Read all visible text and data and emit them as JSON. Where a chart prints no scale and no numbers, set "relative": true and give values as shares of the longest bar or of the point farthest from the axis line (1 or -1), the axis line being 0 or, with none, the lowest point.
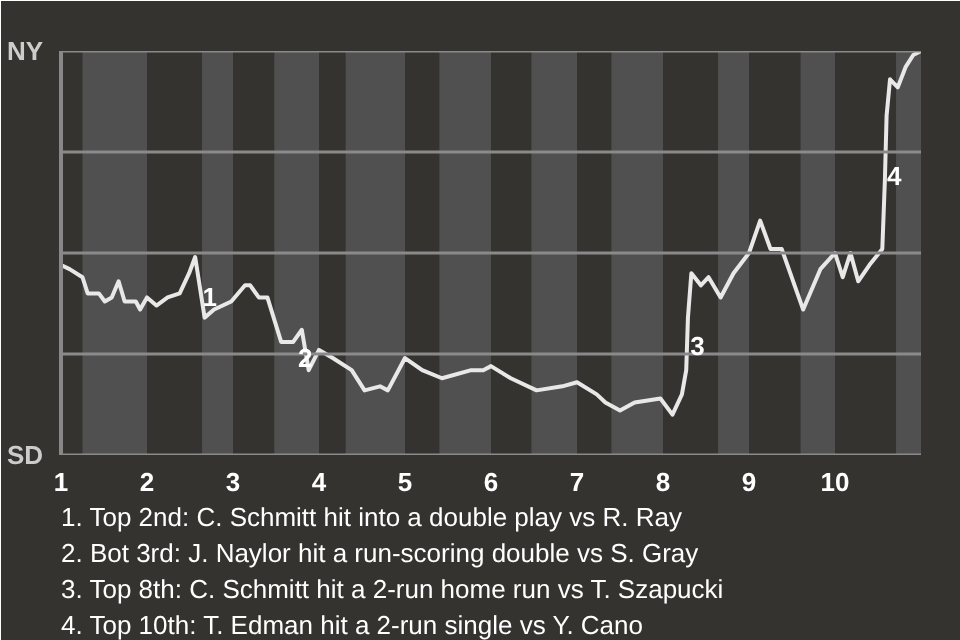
{
  "chart_data": {
    "type": "line",
    "relative": true,
    "x": [
      1.0,
      1.1,
      1.25,
      1.31,
      1.44,
      1.51,
      1.59,
      1.67,
      1.74,
      1.87,
      1.92,
      2.0,
      2.11,
      2.24,
      2.38,
      2.49,
      2.56,
      2.67,
      2.78,
      2.98,
      3.14,
      3.2,
      3.3,
      3.4,
      3.56,
      3.7,
      3.8,
      3.88,
      4.0,
      4.16,
      4.38,
      4.53,
      4.71,
      4.8,
      5.0,
      5.2,
      5.43,
      5.77,
      5.91,
      6.0,
      6.23,
      6.53,
      6.83,
      7.0,
      7.23,
      7.33,
      7.5,
      7.67,
      7.97,
      8.11,
      8.22,
      8.27,
      8.29,
      8.33,
      8.44,
      8.53,
      8.67,
      8.82,
      9.0,
      9.13,
      9.25,
      9.38,
      9.63,
      9.83,
      10.0,
      10.09,
      10.18,
      10.27,
      10.4,
      10.55,
      10.58,
      10.6,
      10.64,
      10.73,
      10.82,
      10.91,
      11.0
    ],
    "series": [
      {
        "color": "#e8e8e8",
        "values": [
          0.47,
          0.46,
          0.44,
          0.4,
          0.4,
          0.38,
          0.39,
          0.43,
          0.38,
          0.38,
          0.36,
          0.39,
          0.37,
          0.39,
          0.4,
          0.45,
          0.49,
          0.34,
          0.36,
          0.38,
          0.42,
          0.42,
          0.39,
          0.39,
          0.28,
          0.28,
          0.31,
          0.21,
          0.26,
          0.24,
          0.21,
          0.16,
          0.17,
          0.16,
          0.24,
          0.21,
          0.19,
          0.21,
          0.21,
          0.22,
          0.19,
          0.16,
          0.17,
          0.18,
          0.15,
          0.13,
          0.11,
          0.13,
          0.14,
          0.1,
          0.15,
          0.21,
          0.34,
          0.45,
          0.42,
          0.44,
          0.39,
          0.45,
          0.5,
          0.58,
          0.51,
          0.51,
          0.36,
          0.46,
          0.5,
          0.44,
          0.5,
          0.43,
          0.47,
          0.51,
          0.68,
          0.84,
          0.93,
          0.91,
          0.96,
          0.99,
          1.0
        ]
      }
    ],
    "xlim": [
      1,
      11
    ],
    "xticks": [
      1,
      2,
      3,
      4,
      5,
      6,
      7,
      8,
      9,
      10
    ],
    "bands": [
      {
        "axis": "x",
        "from": 1.25,
        "to": 2,
        "color": "#505050"
      },
      {
        "axis": "x",
        "from": 2.64,
        "to": 3,
        "color": "#505050"
      },
      {
        "axis": "x",
        "from": 3.48,
        "to": 4,
        "color": "#505050"
      },
      {
        "axis": "x",
        "from": 4.31,
        "to": 5,
        "color": "#505050"
      },
      {
        "axis": "x",
        "from": 5.4,
        "to": 6,
        "color": "#505050"
      },
      {
        "axis": "x",
        "from": 6.47,
        "to": 7,
        "color": "#505050"
      },
      {
        "axis": "x",
        "from": 7.4,
        "to": 8,
        "color": "#505050"
      },
      {
        "axis": "x",
        "from": 8.64,
        "to": 9,
        "color": "#505050"
      },
      {
        "axis": "x",
        "from": 9.6,
        "to": 10,
        "color": "#505050"
      },
      {
        "axis": "x",
        "from": 10.71,
        "to": 11,
        "color": "#505050"
      }
    ],
    "ref_lines": [
      {
        "axis": "y",
        "value": 0,
        "label": "SD",
        "color": "#8a8a8a"
      },
      {
        "axis": "y",
        "value": 0.25,
        "color": "#8a8a8a"
      },
      {
        "axis": "y",
        "value": 0.5,
        "color": "#8a8a8a"
      },
      {
        "axis": "y",
        "value": 0.75,
        "color": "#8a8a8a"
      },
      {
        "axis": "y",
        "value": 1,
        "label": "NY",
        "color": "#8a8a8a"
      }
    ],
    "marker": "none",
    "line_style": "solid",
    "annotations": [
      {
        "text": "1",
        "x": 2.73,
        "y": 0.39
      },
      {
        "text": "2",
        "x": 3.84,
        "y": 0.24
      },
      {
        "text": "3",
        "x": 8.4,
        "y": 0.27
      },
      {
        "text": "4",
        "x": 10.69,
        "y": 0.69
      },
      "1. Top 2nd: C. Schmitt hit into a double play vs R. Ray",
      "2. Bot 3rd: J. Naylor hit a run-scoring double vs S. Gray",
      "3. Top 8th: C. Schmitt hit a 2-run home run vs T. Szapucki",
      "4. Top 10th: T. Edman hit a 2-run single vs Y. Cano"
    ]
  }
}
